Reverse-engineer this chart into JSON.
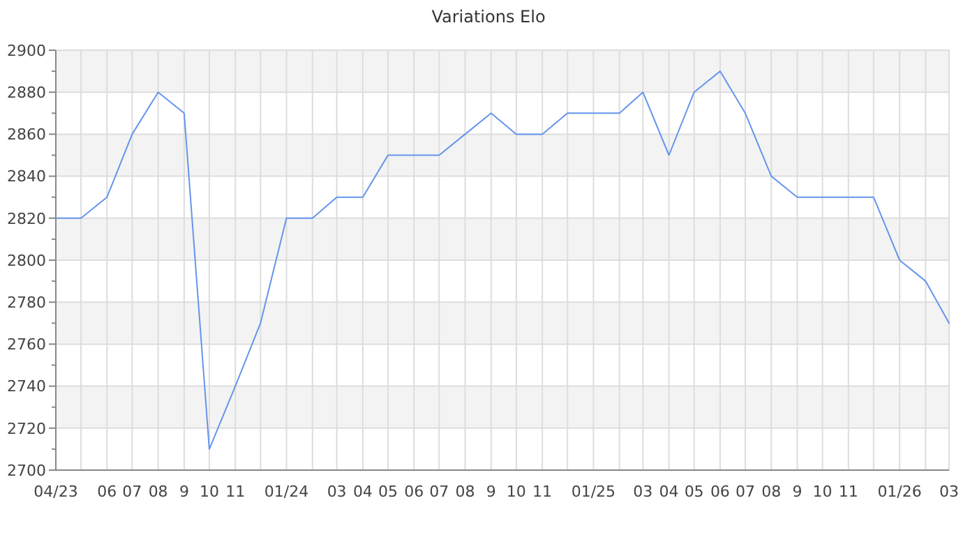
{
  "chart_data": {
    "type": "line",
    "title": "Variations Elo",
    "x": [
      "2023-04",
      "2023-05",
      "2023-06",
      "2023-07",
      "2023-08",
      "2023-09",
      "2023-10",
      "2023-11",
      "2023-12",
      "2024-01",
      "2024-02",
      "2024-03",
      "2024-04",
      "2024-05",
      "2024-06",
      "2024-07",
      "2024-08",
      "2024-09",
      "2024-10",
      "2024-11",
      "2024-12",
      "2025-01",
      "2025-02",
      "2025-03",
      "2025-04",
      "2025-05",
      "2025-06",
      "2025-07",
      "2025-08",
      "2025-09",
      "2025-10",
      "2025-11",
      "2025-12",
      "2026-01",
      "2026-02",
      "2026-03"
    ],
    "values": [
      2820,
      2820,
      2830,
      2860,
      2880,
      2870,
      2710,
      2740,
      2770,
      2820,
      2820,
      2830,
      2830,
      2850,
      2850,
      2850,
      2860,
      2870,
      2860,
      2860,
      2870,
      2870,
      2870,
      2880,
      2850,
      2880,
      2890,
      2870,
      2840,
      2830,
      2830,
      2830,
      2830,
      2800,
      2790,
      2770
    ],
    "color": "#6495ed",
    "xlim": [
      "2023-04",
      "2026-03"
    ],
    "xticks": [
      {
        "value": "2023-04",
        "label": "04/23"
      },
      {
        "value": "2023-05",
        "label": null
      },
      {
        "value": "2023-06",
        "label": "06"
      },
      {
        "value": "2023-07",
        "label": "07"
      },
      {
        "value": "2023-08",
        "label": "08"
      },
      {
        "value": "2023-09",
        "label": "9"
      },
      {
        "value": "2023-10",
        "label": "10"
      },
      {
        "value": "2023-11",
        "label": "11"
      },
      {
        "value": "2023-12",
        "label": null
      },
      {
        "value": "2024-01",
        "label": "01/24"
      },
      {
        "value": "2024-02",
        "label": null
      },
      {
        "value": "2024-03",
        "label": "03"
      },
      {
        "value": "2024-04",
        "label": "04"
      },
      {
        "value": "2024-05",
        "label": "05"
      },
      {
        "value": "2024-06",
        "label": "06"
      },
      {
        "value": "2024-07",
        "label": "07"
      },
      {
        "value": "2024-08",
        "label": "08"
      },
      {
        "value": "2024-09",
        "label": "9"
      },
      {
        "value": "2024-10",
        "label": "10"
      },
      {
        "value": "2024-11",
        "label": "11"
      },
      {
        "value": "2024-12",
        "label": null
      },
      {
        "value": "2025-01",
        "label": "01/25"
      },
      {
        "value": "2025-02",
        "label": null
      },
      {
        "value": "2025-03",
        "label": "03"
      },
      {
        "value": "2025-04",
        "label": "04"
      },
      {
        "value": "2025-05",
        "label": "05"
      },
      {
        "value": "2025-06",
        "label": "06"
      },
      {
        "value": "2025-07",
        "label": "07"
      },
      {
        "value": "2025-08",
        "label": "08"
      },
      {
        "value": "2025-09",
        "label": "9"
      },
      {
        "value": "2025-10",
        "label": "10"
      },
      {
        "value": "2025-11",
        "label": "11"
      },
      {
        "value": "2025-12",
        "label": null
      },
      {
        "value": "2026-01",
        "label": "01/26"
      },
      {
        "value": "2026-02",
        "label": null
      },
      {
        "value": "2026-03",
        "label": "03"
      }
    ],
    "ylim": [
      2700,
      2900
    ],
    "yticks": [
      2700,
      {
        "value": 2710,
        "label": null
      },
      2720,
      {
        "value": 2730,
        "label": null
      },
      2740,
      {
        "value": 2750,
        "label": null
      },
      2760,
      {
        "value": 2770,
        "label": null
      },
      2780,
      {
        "value": 2790,
        "label": null
      },
      2800,
      {
        "value": 2810,
        "label": null
      },
      2820,
      {
        "value": 2830,
        "label": null
      },
      2840,
      {
        "value": 2850,
        "label": null
      },
      2860,
      {
        "value": 2870,
        "label": null
      },
      2880,
      {
        "value": 2890,
        "label": null
      },
      2900
    ],
    "grid": true
  }
}
